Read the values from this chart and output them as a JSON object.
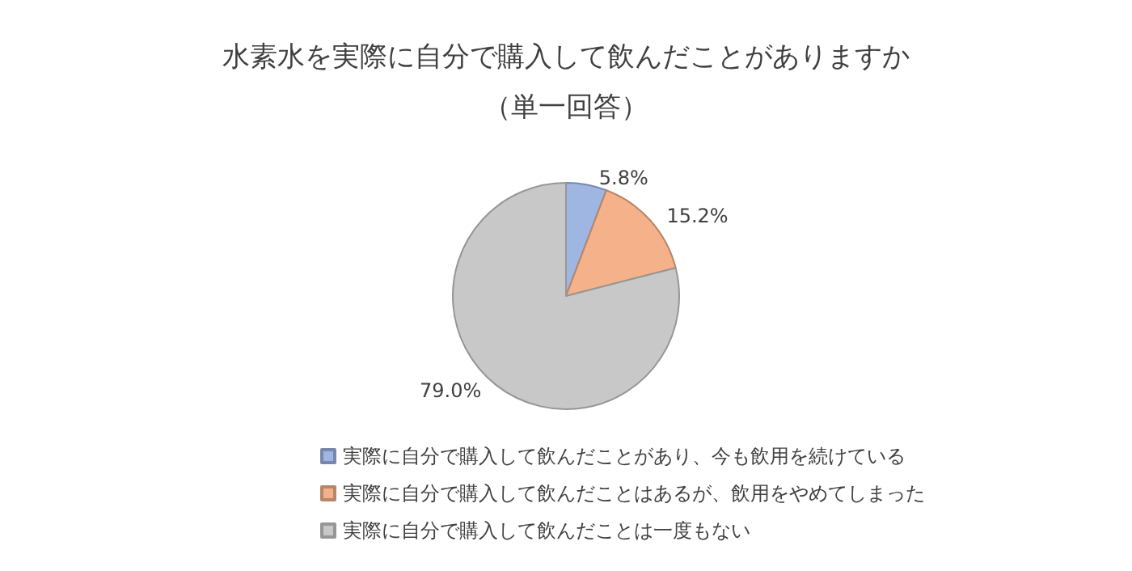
{
  "chart_data": {
    "type": "pie",
    "title": "水素水を実際に自分で購入して飲んだことがありますか",
    "subtitle": "（単一回答）",
    "categories": [
      "実際に自分で購入して飲んだことがあり、今も飲用を続けている",
      "実際に自分で購入して飲んだことはあるが、飲用をやめてしまった",
      "実際に自分で購入して飲んだことは一度もない"
    ],
    "values": [
      5.8,
      15.2,
      79.0
    ],
    "colors": [
      "#9fb5e2",
      "#f5b28a",
      "#c8c8c8"
    ],
    "value_labels": [
      "5.8%",
      "15.2%",
      "79.0%"
    ],
    "legend": "bottom"
  }
}
